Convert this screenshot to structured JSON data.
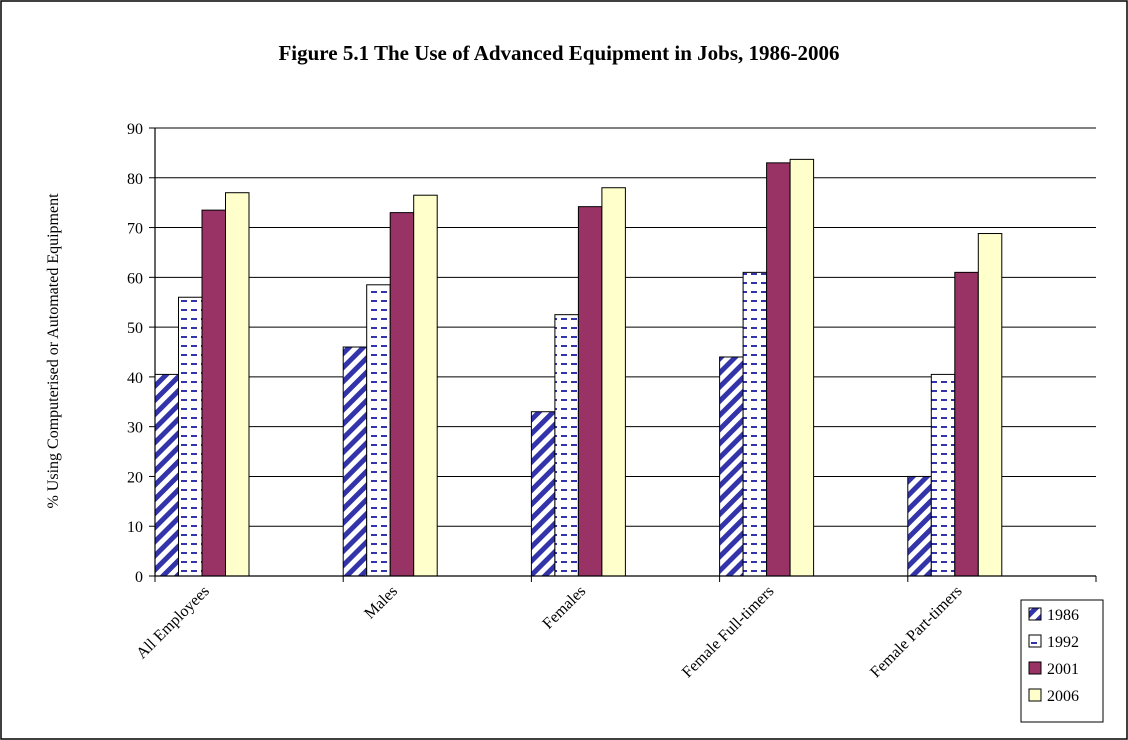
{
  "chart_data": {
    "type": "bar",
    "title": "Figure 5.1 The Use of Advanced Equipment in Jobs, 1986-2006",
    "xlabel": "",
    "ylabel": "% Using Computerised or Automated Equipment",
    "ylim": [
      0,
      90
    ],
    "yticks": [
      "0",
      "10",
      "20",
      "30",
      "40",
      "50",
      "60",
      "70",
      "80",
      "90"
    ],
    "grid": true,
    "legend_position": "bottom-right",
    "categories": [
      "All Employees",
      "Males",
      "Females",
      "Female Full-timers",
      "Female Part-timers"
    ],
    "series": [
      {
        "name": "1986",
        "values": [
          40.5,
          46,
          33,
          44,
          20
        ],
        "color": "#3333aa",
        "pattern": "diagonal-stripes"
      },
      {
        "name": "1992",
        "values": [
          56,
          58.5,
          52.5,
          61,
          40.5
        ],
        "color": "#3333aa",
        "pattern": "horizontal-dashes"
      },
      {
        "name": "2001",
        "values": [
          73.5,
          73,
          74.2,
          83,
          61
        ],
        "color": "#993366",
        "pattern": "solid"
      },
      {
        "name": "2006",
        "values": [
          77,
          76.5,
          78,
          83.7,
          68.8
        ],
        "color": "#ffffcc",
        "pattern": "solid"
      }
    ]
  }
}
